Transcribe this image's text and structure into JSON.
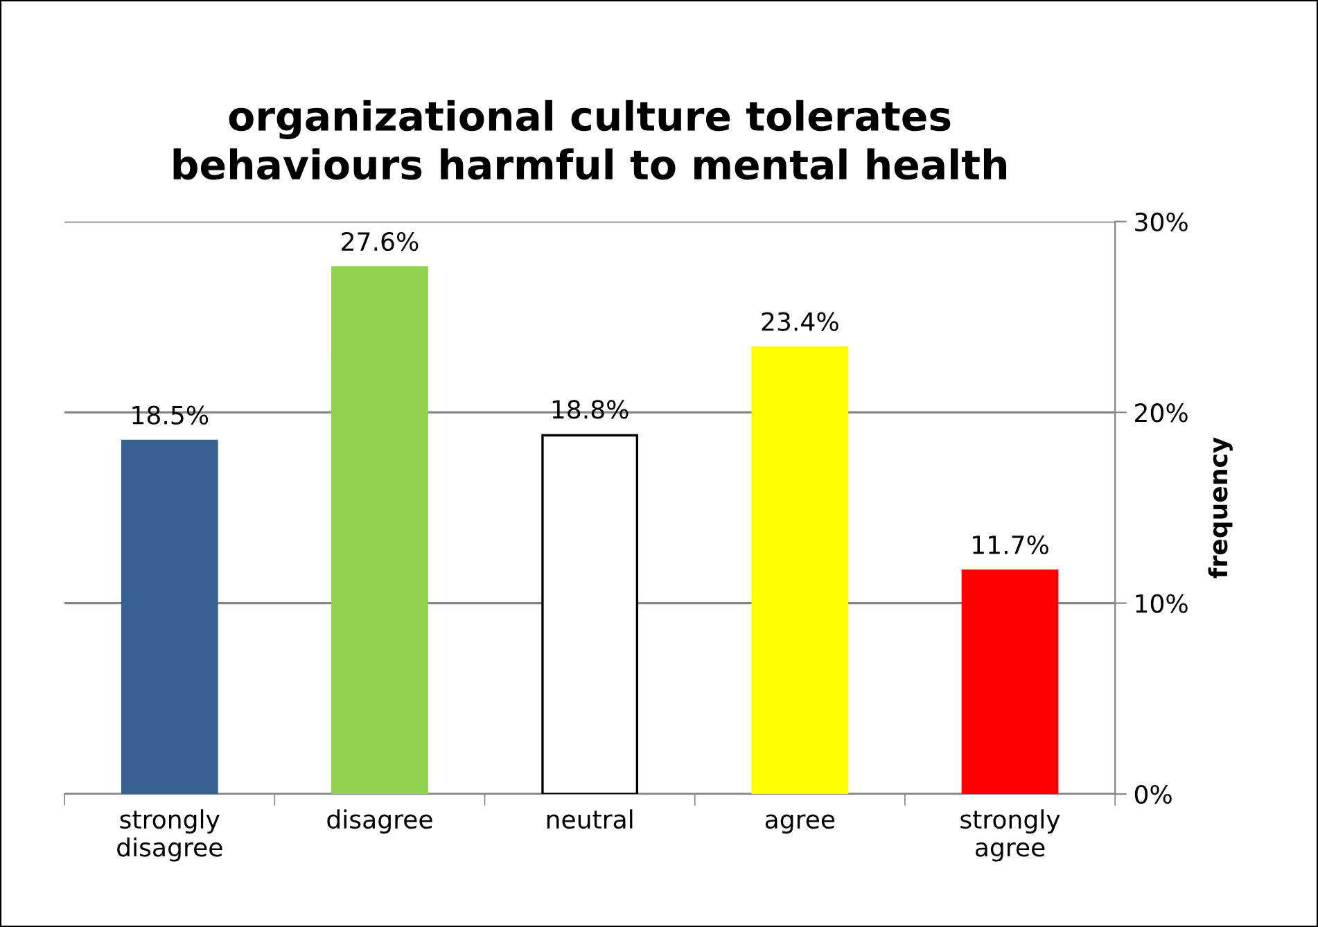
{
  "chart_data": {
    "type": "bar",
    "title": "organizational culture tolerates\nbehaviours harmful to mental health",
    "ylabel": "frequency",
    "categories": [
      "strongly\ndisagree",
      "disagree",
      "neutral",
      "agree",
      "strongly\nagree"
    ],
    "values": [
      18.5,
      27.6,
      18.8,
      23.4,
      11.7
    ],
    "colors": [
      "#376092",
      "#92d050",
      "#ffffff",
      "#ffff00",
      "#ff0000"
    ],
    "value_labels": [
      "18.5%",
      "27.6%",
      "18.8%",
      "23.4%",
      "11.7%"
    ],
    "ylim": [
      0,
      30
    ],
    "yticks": [
      {
        "value": 0,
        "label": "0%"
      },
      {
        "value": 10,
        "label": "10%"
      },
      {
        "value": 20,
        "label": "20%"
      },
      {
        "value": 30,
        "label": "30%"
      }
    ],
    "grid": "y",
    "legend": false
  }
}
